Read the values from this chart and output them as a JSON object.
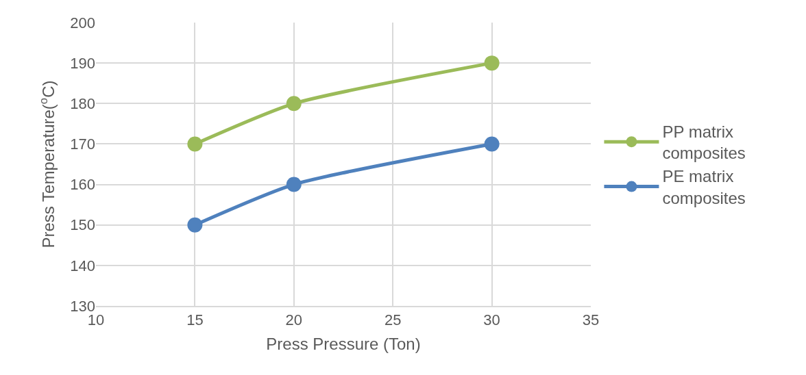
{
  "chart_data": {
    "type": "line",
    "xlabel": "Press Pressure (Ton)",
    "ylabel": "Press Temperature($^{o}$C)",
    "x": [
      15,
      20,
      30
    ],
    "series": [
      {
        "name": "PP matrix composites",
        "color": "#9bbb59",
        "values": [
          170,
          180,
          190
        ]
      },
      {
        "name": "PE matrix composites",
        "color": "#4f81bd",
        "values": [
          150,
          160,
          170
        ]
      }
    ],
    "xlim": [
      10,
      35
    ],
    "xticks": [
      10,
      15,
      20,
      25,
      30,
      35
    ],
    "ylim": [
      130,
      200
    ],
    "yticks": [
      130,
      140,
      150,
      160,
      170,
      180,
      190,
      200
    ],
    "grid": true,
    "legend": "right",
    "marker": "circle",
    "line_style": "solid"
  }
}
